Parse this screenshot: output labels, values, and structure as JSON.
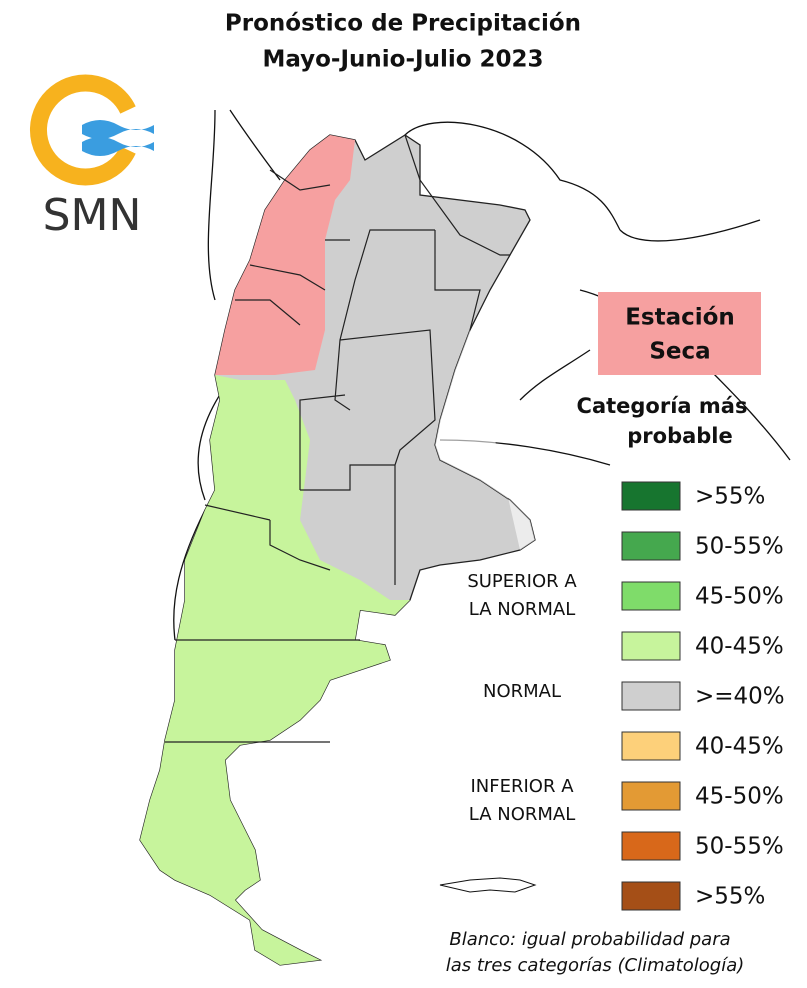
{
  "header": {
    "title": "Pronóstico de Precipitación",
    "subtitle": "Mayo-Junio-Julio 2023"
  },
  "logo": {
    "text": "SMN"
  },
  "callout": {
    "lines": [
      "Estación",
      "Seca"
    ]
  },
  "legend": {
    "title_lines": [
      "Categoría más",
      "probable"
    ],
    "items": [
      {
        "label": ">55%",
        "color": "#17752f"
      },
      {
        "label": "50-55%",
        "color": "#45a84e"
      },
      {
        "label": "45-50%",
        "color": "#7fdc6a"
      },
      {
        "label": "40-45%",
        "color": "#c7f49c"
      },
      {
        "label": ">=40%",
        "color": "#cfcfcf"
      },
      {
        "label": "40-45%",
        "color": "#fdd07a"
      },
      {
        "label": "45-50%",
        "color": "#e39a34"
      },
      {
        "label": "50-55%",
        "color": "#d8681a"
      },
      {
        "label": ">55%",
        "color": "#a54f17"
      }
    ],
    "groups": [
      {
        "lines": [
          "SUPERIOR A",
          "LA NORMAL"
        ]
      },
      {
        "lines": [
          "NORMAL"
        ]
      },
      {
        "lines": [
          "INFERIOR A",
          "LA NORMAL"
        ]
      }
    ]
  },
  "footnote": {
    "lines": [
      "Blanco: igual probabilidad para",
      "las tres categorías (Climatología)"
    ]
  }
}
